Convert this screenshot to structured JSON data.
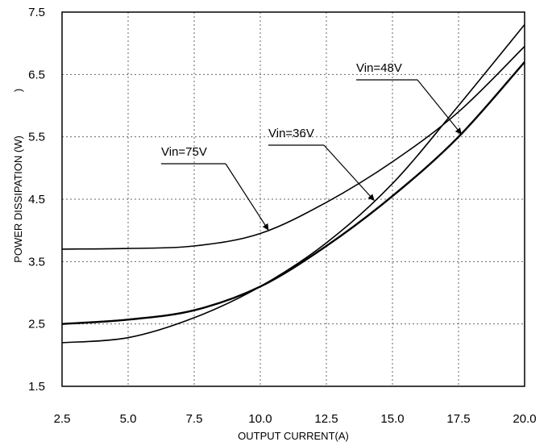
{
  "chart_data": {
    "type": "line",
    "title": "",
    "xlabel": "OUTPUT CURRENT(A)",
    "ylabel": "POWER DISSIPATION (W)",
    "ylabel_suffix": ")",
    "xlim": [
      2.5,
      20.0
    ],
    "ylim": [
      1.5,
      7.5
    ],
    "xticks": [
      "2.5",
      "5.0",
      "7.5",
      "10.0",
      "12.5",
      "15.0",
      "17.5",
      "20.0"
    ],
    "yticks": [
      "1.5",
      "2.5",
      "3.5",
      "4.5",
      "5.5",
      "6.5",
      "7.5"
    ],
    "grid": true,
    "series": [
      {
        "name": "Vin=75V",
        "x": [
          2.5,
          5.0,
          7.5,
          10.0,
          12.5,
          15.0,
          17.5,
          20.0
        ],
        "values": [
          3.7,
          3.71,
          3.75,
          3.95,
          4.45,
          5.1,
          5.9,
          6.95
        ]
      },
      {
        "name": "Vin=36V",
        "x": [
          2.5,
          5.0,
          7.5,
          10.0,
          12.5,
          15.0,
          17.5,
          20.0
        ],
        "values": [
          2.2,
          2.28,
          2.6,
          3.1,
          3.8,
          4.75,
          6.0,
          7.3
        ]
      },
      {
        "name": "Vin=48V",
        "x": [
          2.5,
          5.0,
          7.5,
          10.0,
          12.5,
          15.0,
          17.5,
          20.0
        ],
        "values": [
          2.5,
          2.57,
          2.72,
          3.1,
          3.75,
          4.55,
          5.5,
          6.7
        ]
      }
    ],
    "annotations": [
      {
        "text": "Vin=75V",
        "series": "Vin=75V",
        "x": 10.3
      },
      {
        "text": "Vin=36V",
        "series": "Vin=36V",
        "x": 14.3
      },
      {
        "text": "Vin=48V",
        "series": "Vin=48V",
        "x": 17.6
      }
    ]
  }
}
